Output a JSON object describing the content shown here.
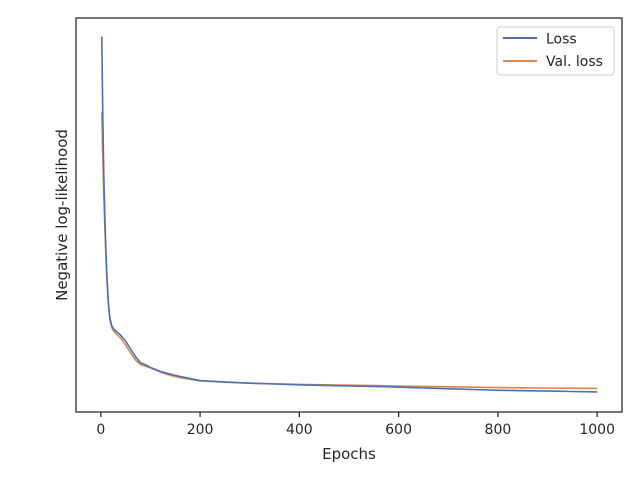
{
  "chart_data": {
    "type": "line",
    "title": "",
    "xlabel": "Epochs",
    "ylabel": "Negative log-likelihood",
    "xlim": [
      -50,
      1050
    ],
    "ylim": [
      0,
      100
    ],
    "y_ticks_shown": false,
    "x_ticks": [
      0,
      200,
      400,
      600,
      800,
      1000
    ],
    "grid": false,
    "legend_position": "top-right",
    "series": [
      {
        "name": "Loss",
        "color": "#4c72b0",
        "x": [
          2,
          4,
          6,
          8,
          10,
          12,
          15,
          18,
          22,
          26,
          30,
          40,
          50,
          60,
          70,
          80,
          90,
          100,
          120,
          140,
          160,
          180,
          200,
          250,
          300,
          350,
          400,
          450,
          500,
          550,
          600,
          650,
          700,
          750,
          800,
          850,
          900,
          950,
          1000
        ],
        "y": [
          95.3,
          75.0,
          60.0,
          50.0,
          42.0,
          35.0,
          28.0,
          24.0,
          22.0,
          21.0,
          20.6,
          19.5,
          18.0,
          16.0,
          14.0,
          12.5,
          12.0,
          11.3,
          10.3,
          9.6,
          9.0,
          8.5,
          8.0,
          7.6,
          7.3,
          7.1,
          6.9,
          6.75,
          6.6,
          6.5,
          6.3,
          6.1,
          5.9,
          5.7,
          5.5,
          5.4,
          5.3,
          5.2,
          5.1
        ]
      },
      {
        "name": "Val. loss",
        "color": "#dd8452",
        "x": [
          2,
          4,
          6,
          8,
          10,
          12,
          15,
          18,
          22,
          26,
          30,
          40,
          50,
          60,
          70,
          80,
          90,
          100,
          120,
          140,
          160,
          180,
          200,
          250,
          300,
          350,
          400,
          450,
          500,
          550,
          600,
          650,
          700,
          750,
          800,
          850,
          900,
          950,
          1000
        ],
        "y": [
          76.1,
          65.0,
          55.0,
          47.0,
          40.0,
          34.0,
          27.5,
          23.5,
          21.5,
          20.6,
          20.0,
          18.7,
          17.0,
          15.0,
          13.2,
          12.0,
          11.6,
          11.2,
          10.1,
          9.3,
          8.7,
          8.3,
          7.9,
          7.6,
          7.3,
          7.15,
          7.0,
          6.9,
          6.8,
          6.7,
          6.6,
          6.5,
          6.4,
          6.3,
          6.2,
          6.15,
          6.1,
          6.05,
          6.0
        ]
      }
    ]
  }
}
